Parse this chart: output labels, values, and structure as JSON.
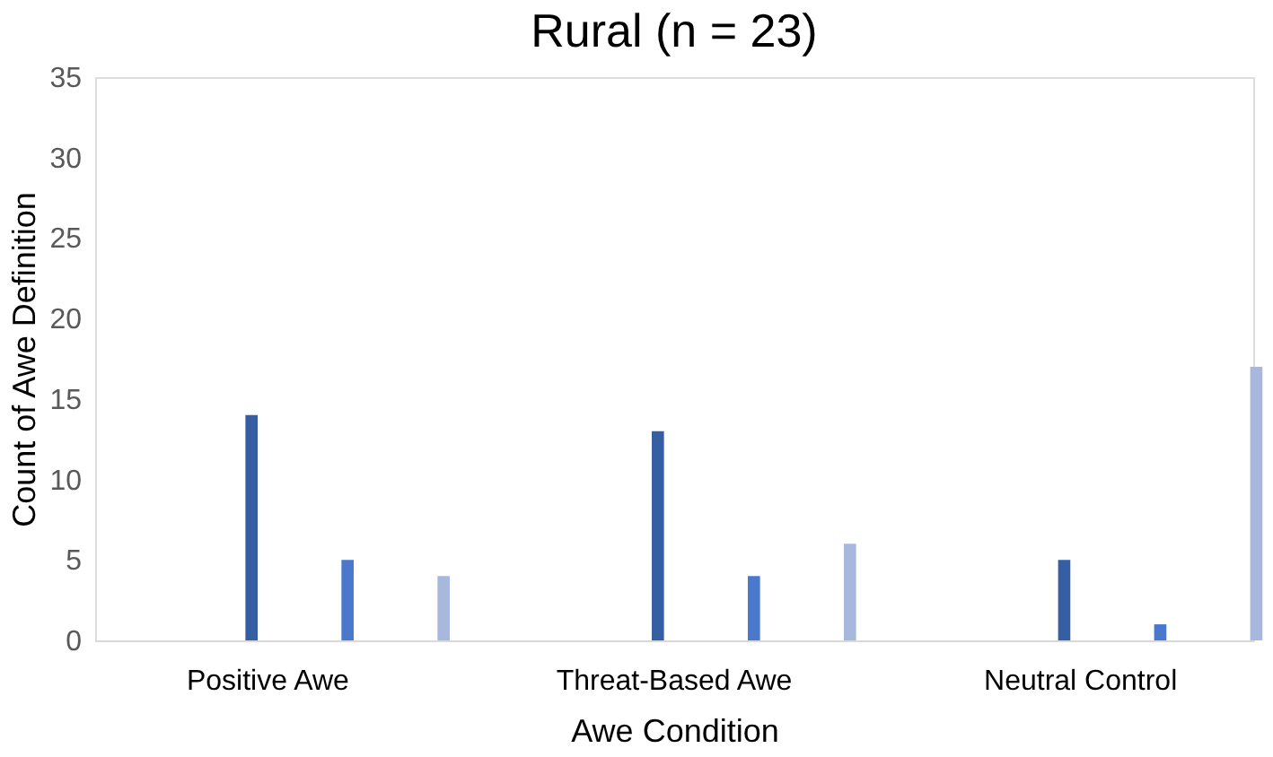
{
  "chart_data": {
    "type": "bar",
    "title": "Rural (n = 23)",
    "xlabel": "Awe Condition",
    "ylabel": "Count of Awe Definition",
    "categories": [
      "Positive Awe",
      "Threat-Based Awe",
      "Neutral Control"
    ],
    "series": [
      {
        "color": "#365fa3",
        "values": [
          14,
          13,
          5
        ]
      },
      {
        "color": "#4a78cc",
        "values": [
          5,
          4,
          1
        ]
      },
      {
        "color": "#a8b8dd",
        "values": [
          4,
          6,
          17
        ]
      }
    ],
    "ylim": [
      0,
      35
    ],
    "yticks": [
      0,
      5,
      10,
      15,
      20,
      25,
      30,
      35
    ],
    "grid": false,
    "legend": false
  }
}
